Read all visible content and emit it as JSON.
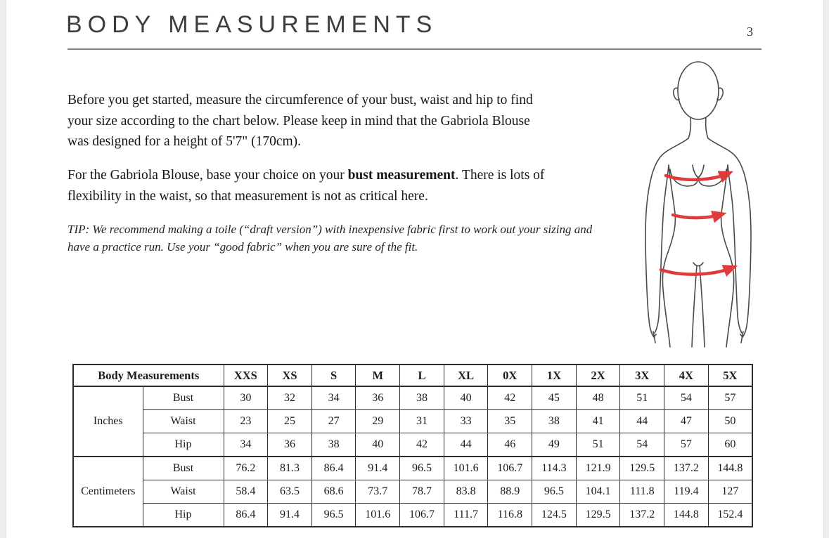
{
  "page": {
    "title": "BODY MEASUREMENTS",
    "page_number": "3",
    "accent_color": "#df3b3b"
  },
  "intro": {
    "para1_lines": [
      "Before you get started, measure the circumference of your bust, waist and hip to find",
      "your size according to the chart below. Please keep in mind that the Gabriola Blouse",
      "was designed for a height of 5'7\" (170cm)."
    ],
    "para2": {
      "before": "For the Gabriola Blouse, base your choice on your ",
      "bold": "bust measurement",
      "after": ". There is lots of",
      "line2": "flexibility in the waist, so that measurement is not as critical here."
    },
    "tip_lines": [
      "TIP: We recommend making a toile (“draft version”) with inexpensive fabric first to work out your sizing and",
      "have a practice run. Use your “good fabric” when you are sure of the fit."
    ]
  },
  "figure": {
    "name": "female-body-outline",
    "outline_color": "#4a4a4a",
    "arrow_color": "#df3b3b",
    "measurements": [
      "bust",
      "waist",
      "hip"
    ]
  },
  "table": {
    "header_label": "Body Measurements",
    "sizes": [
      "XXS",
      "XS",
      "S",
      "M",
      "L",
      "XL",
      "0X",
      "1X",
      "2X",
      "3X",
      "4X",
      "5X"
    ],
    "sections": [
      {
        "unit": "Inches",
        "rows": [
          {
            "label": "Bust",
            "values": [
              "30",
              "32",
              "34",
              "36",
              "38",
              "40",
              "42",
              "45",
              "48",
              "51",
              "54",
              "57"
            ]
          },
          {
            "label": "Waist",
            "values": [
              "23",
              "25",
              "27",
              "29",
              "31",
              "33",
              "35",
              "38",
              "41",
              "44",
              "47",
              "50"
            ]
          },
          {
            "label": "Hip",
            "values": [
              "34",
              "36",
              "38",
              "40",
              "42",
              "44",
              "46",
              "49",
              "51",
              "54",
              "57",
              "60"
            ]
          }
        ]
      },
      {
        "unit": "Centimeters",
        "rows": [
          {
            "label": "Bust",
            "values": [
              "76.2",
              "81.3",
              "86.4",
              "91.4",
              "96.5",
              "101.6",
              "106.7",
              "114.3",
              "121.9",
              "129.5",
              "137.2",
              "144.8"
            ]
          },
          {
            "label": "Waist",
            "values": [
              "58.4",
              "63.5",
              "68.6",
              "73.7",
              "78.7",
              "83.8",
              "88.9",
              "96.5",
              "104.1",
              "111.8",
              "119.4",
              "127"
            ]
          },
          {
            "label": "Hip",
            "values": [
              "86.4",
              "91.4",
              "96.5",
              "101.6",
              "106.7",
              "111.7",
              "116.8",
              "124.5",
              "129.5",
              "137.2",
              "144.8",
              "152.4"
            ]
          }
        ]
      }
    ]
  }
}
